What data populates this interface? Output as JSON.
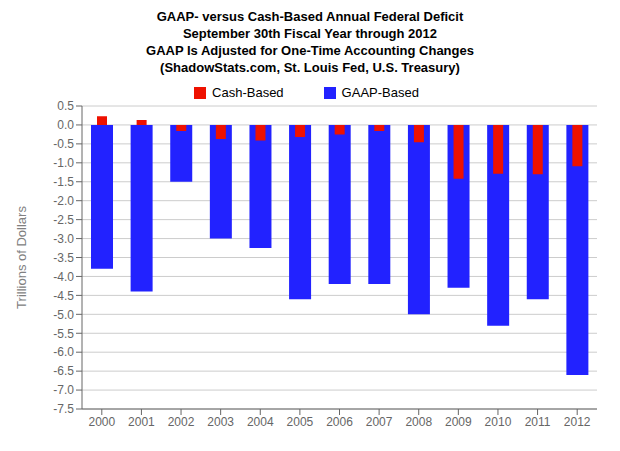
{
  "chart_data": {
    "type": "bar",
    "title": "GAAP- versus Cash-Based Annual Federal Deficit\nSeptember 30th Fiscal Year through 2012\nGAAP Is Adjusted for One-Time Accounting Changes\n(ShadowStats.com, St. Louis Fed, U.S. Treasury)",
    "y_label": "Trillions of Dollars",
    "categories": [
      "2000",
      "2001",
      "2002",
      "2003",
      "2004",
      "2005",
      "2006",
      "2007",
      "2008",
      "2009",
      "2010",
      "2011",
      "2012"
    ],
    "series": [
      {
        "name": "Cash-Based",
        "color": "#EE1100",
        "values": [
          0.23,
          0.13,
          -0.16,
          -0.37,
          -0.41,
          -0.32,
          -0.25,
          -0.16,
          -0.46,
          -1.42,
          -1.29,
          -1.3,
          -1.09
        ]
      },
      {
        "name": "GAAP-Based",
        "color": "#2222FF",
        "values": [
          -3.8,
          -4.4,
          -1.5,
          -3.0,
          -3.25,
          -4.6,
          -4.2,
          -4.2,
          -5.0,
          -4.3,
          -5.3,
          -4.6,
          -6.6
        ]
      }
    ],
    "ylim": [
      -7.5,
      0.5
    ],
    "yticks": [
      -7.5,
      {
        "value": -7,
        "label": "-7.0"
      },
      -6.5,
      {
        "value": -6,
        "label": "-6.0"
      },
      -5.5,
      {
        "value": -5,
        "label": "-5.0"
      },
      -4.5,
      {
        "value": -4,
        "label": "-4.0"
      },
      -3.5,
      {
        "value": -3,
        "label": "-3.0"
      },
      -2.5,
      {
        "value": -2,
        "label": "-2.0"
      },
      -1.5,
      {
        "value": -1,
        "label": "-1.0"
      },
      -0.5,
      {
        "value": 0,
        "label": "0.0"
      },
      0.5
    ],
    "grid": true,
    "legend": "top"
  }
}
